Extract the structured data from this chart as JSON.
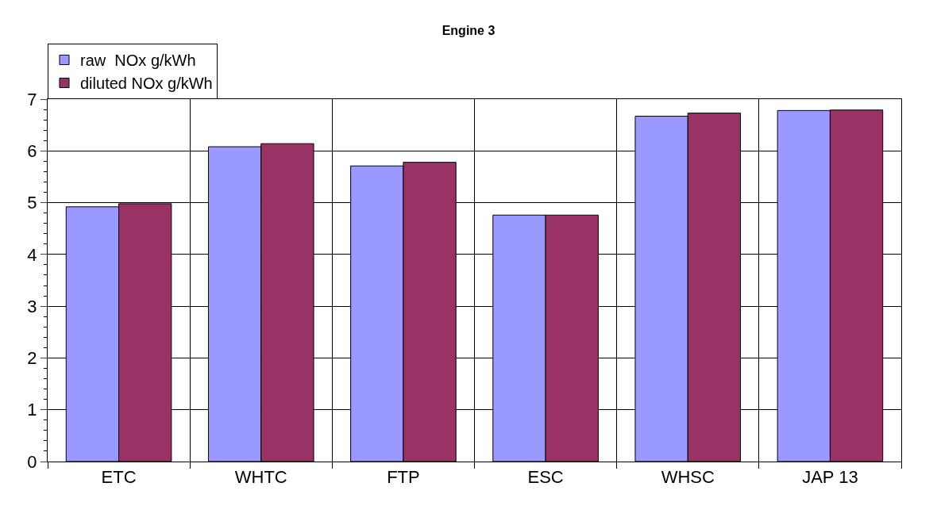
{
  "chart_data": {
    "type": "bar",
    "title": "Engine 3",
    "categories": [
      "ETC",
      "WHTC",
      "FTP",
      "ESC",
      "WHSC",
      "JAP 13"
    ],
    "series": [
      {
        "name": "raw  NOx g/kWh",
        "color": "#9999ff",
        "values": [
          4.92,
          6.08,
          5.71,
          4.76,
          6.67,
          6.78
        ]
      },
      {
        "name": "diluted NOx g/kWh",
        "color": "#993366",
        "values": [
          4.98,
          6.14,
          5.78,
          4.76,
          6.73,
          6.79
        ]
      }
    ],
    "ylim": [
      0,
      7
    ],
    "yticks": [
      0,
      1,
      2,
      3,
      4,
      5,
      6,
      7
    ],
    "grid": true,
    "legend": "top left"
  }
}
